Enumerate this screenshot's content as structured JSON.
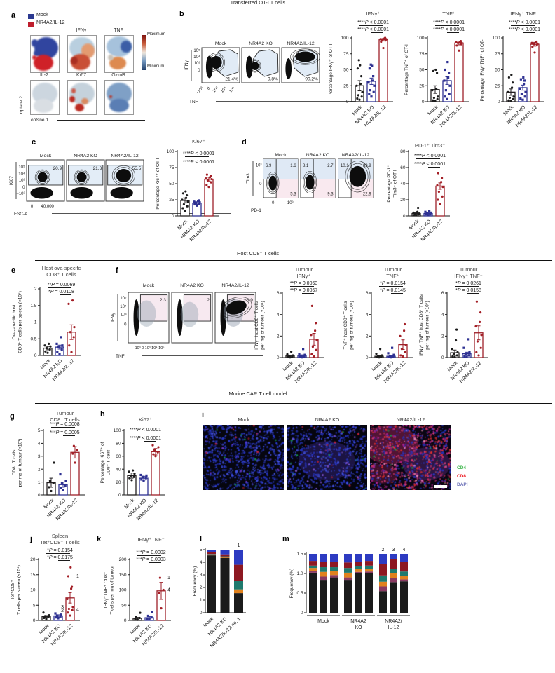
{
  "section_headers": [
    "Transferred OT-I T cells",
    "Host CD8⁺ T cells",
    "Murine CAR T cell model"
  ],
  "panel_letters": [
    "a",
    "b",
    "c",
    "d",
    "e",
    "f",
    "g",
    "h",
    "i",
    "j",
    "k",
    "l",
    "m"
  ],
  "colors": {
    "mock": "#231f20",
    "ko": "#2e3192",
    "il12": "#9e1f28",
    "dot_mock": "#1b1b1b",
    "dot_ko": "#2e3192",
    "dot_il12": "#a31f26",
    "annot": "#1f7a6e",
    "stack": [
      "#1b1b1b",
      "#8a3a62",
      "#e0821e",
      "#1f7a6e",
      "#8d1822",
      "#2d3bc1"
    ]
  },
  "panel_a": {
    "legend": [
      {
        "label": "Mock",
        "color": "#2b3990"
      },
      {
        "label": "NR4A2/IL-12",
        "color": "#be1e2d"
      }
    ],
    "row1_labels": [
      "IFNγ",
      "TNF"
    ],
    "row2_labels": [
      "IL-2",
      "Ki67",
      "GzmB"
    ],
    "colorbar": {
      "top": "Maximum",
      "bottom": "Minimum"
    },
    "x_axis": "optsne 1",
    "y_axis": "optsne 2"
  },
  "flow_plots": {
    "b": {
      "ylabel": "IFNγ",
      "xlabel": "TNF",
      "yticks": [
        "10⁵",
        "10⁴",
        "10³",
        "0"
      ],
      "xticks": [
        "−10³",
        "0",
        "10³",
        "10⁴",
        "10⁵"
      ],
      "plots": [
        {
          "name": "Mock",
          "value": "21.4%"
        },
        {
          "name": "NR4A2 KO",
          "value": "9.8%"
        },
        {
          "name": "NR4A2/IL-12",
          "value": "90.2%"
        }
      ]
    },
    "c": {
      "ylabel": "Ki67",
      "xlabel": "FSC-A",
      "yticks": [
        "10⁵",
        "10⁴",
        "10³",
        "0",
        "−10³"
      ],
      "xticks": [
        "0",
        "40,000"
      ],
      "plots": [
        {
          "name": "Mock",
          "value": "20.9"
        },
        {
          "name": "NR4A2 KO",
          "value": "21.3"
        },
        {
          "name": "NR4A2/IL-12",
          "value": "55.5"
        }
      ]
    },
    "d": {
      "ylabel": "Tim3",
      "xlabel": "PD-1",
      "yticks": [
        "10³",
        "0"
      ],
      "xticks": [
        "0",
        "10³"
      ],
      "plots": [
        {
          "name": "Mock",
          "tl": "6.9",
          "tr": "1.6",
          "br": "5.3"
        },
        {
          "name": "NR4A2 KO",
          "tl": "8.1",
          "tr": "2.7",
          "br": "9.3"
        },
        {
          "name": "NR4A2/IL-12",
          "tl": "10.1",
          "tr": "33.9",
          "br": "22.9"
        }
      ]
    },
    "f": {
      "ylabel": "IFNγ",
      "xlabel": "TNF",
      "yticks": [
        "10⁵",
        "10⁴",
        "10³",
        "0"
      ],
      "xticks": [
        "−10³",
        "0",
        "10³",
        "10⁴",
        "10⁵"
      ],
      "plots": [
        {
          "name": "Mock",
          "value": "2.3"
        },
        {
          "name": "NR4A2 KO",
          "value": "2"
        },
        {
          "name": "NR4A2/IL-12",
          "value": "8.9"
        }
      ]
    }
  },
  "chart_data": [
    {
      "id": "b1",
      "type": "bar",
      "title": "IFNγ⁺",
      "p": [
        "****P < 0.0001",
        "****P < 0.0001"
      ],
      "ylabel": "Percentage IFNγ⁺ of OT-I",
      "ymax": 100,
      "yticks": [
        0,
        25,
        50,
        75,
        100
      ],
      "categories": [
        "Mock",
        "NR4A2 KO",
        "NR4A2/IL-12"
      ],
      "values": [
        25,
        32,
        97
      ],
      "errors": [
        8,
        5,
        2
      ],
      "dots": [
        [
          3,
          5,
          8,
          10,
          15,
          25,
          28,
          40,
          52,
          57,
          65
        ],
        [
          8,
          12,
          15,
          18,
          25,
          30,
          33,
          40,
          52,
          56,
          58
        ],
        [
          84,
          94,
          96,
          97,
          98,
          98,
          99,
          100
        ]
      ]
    },
    {
      "id": "b2",
      "type": "bar",
      "title": "TNF⁺",
      "p": [
        "****P < 0.0001",
        "****P < 0.0001"
      ],
      "ylabel": "Percentage TNF⁺ of OT-I",
      "ymax": 100,
      "yticks": [
        0,
        25,
        50,
        75,
        100
      ],
      "categories": [
        "Mock",
        "NR4A2 KO",
        "NR4A2/IL-12"
      ],
      "values": [
        19,
        33,
        92
      ],
      "errors": [
        6,
        6,
        3
      ],
      "dots": [
        [
          1,
          2,
          4,
          6,
          8,
          18,
          20,
          45,
          48,
          50
        ],
        [
          4,
          8,
          12,
          18,
          25,
          33,
          38,
          45,
          50,
          62
        ],
        [
          80,
          88,
          90,
          92,
          92,
          93,
          94,
          95
        ]
      ]
    },
    {
      "id": "b3",
      "type": "bar",
      "title": "IFNγ⁺ TNF⁺",
      "p": [
        "****P < 0.0001",
        "****P < 0.0001"
      ],
      "ylabel": "Percentage IFNγ⁺TNF⁺ of OT-I",
      "ymax": 100,
      "yticks": [
        0,
        25,
        50,
        75,
        100
      ],
      "categories": [
        "Mock",
        "NR4A2 KO",
        "NR4A2/IL-12"
      ],
      "values": [
        15,
        22,
        90
      ],
      "errors": [
        5,
        4,
        3
      ],
      "dots": [
        [
          1,
          2,
          4,
          6,
          8,
          15,
          22,
          30,
          38,
          42
        ],
        [
          3,
          5,
          8,
          12,
          15,
          20,
          28,
          33,
          35,
          38
        ],
        [
          77,
          86,
          89,
          90,
          91,
          92,
          93,
          94
        ]
      ]
    },
    {
      "id": "c1",
      "type": "bar",
      "title": "Ki67⁺",
      "p": [
        "****P < 0.0001",
        "****P < 0.0001"
      ],
      "ylabel": "Percentage Ki67⁺ of OT-I",
      "ymax": 100,
      "yticks": [
        0,
        25,
        50,
        75,
        100
      ],
      "categories": [
        "Mock",
        "NR4A2 KO",
        "NR4A2/IL-12"
      ],
      "values": [
        24,
        20,
        57
      ],
      "errors": [
        4,
        2,
        3
      ],
      "dots": [
        [
          8,
          12,
          15,
          18,
          22,
          25,
          28,
          32,
          35,
          38
        ],
        [
          16,
          18,
          19,
          20,
          21,
          22,
          23,
          24
        ],
        [
          45,
          48,
          52,
          55,
          57,
          58,
          60,
          62,
          64
        ]
      ]
    },
    {
      "id": "d1",
      "type": "bar",
      "title": "PD-1⁺ Tim3⁺",
      "p": [
        "****P < 0.0001",
        "****P < 0.0001"
      ],
      "ylabel": [
        "Percentage PD-1⁺",
        "Tim3⁺ of OT-I"
      ],
      "ymax": 80,
      "yticks": [
        0,
        20,
        40,
        60,
        80
      ],
      "categories": [
        "Mock",
        "NR4A2 KO",
        "NR4A2/IL-12"
      ],
      "values": [
        3,
        3,
        37
      ],
      "errors": [
        1,
        1,
        4
      ],
      "dots": [
        [
          1,
          1,
          2,
          2,
          3,
          4,
          5,
          10
        ],
        [
          1,
          2,
          2,
          3,
          4,
          5,
          6
        ],
        [
          15,
          20,
          24,
          30,
          36,
          38,
          42,
          47,
          53
        ]
      ]
    },
    {
      "id": "e1",
      "type": "bar",
      "title": [
        "Host ova-specifc",
        "CD8⁺ T cells"
      ],
      "p": [
        "**P = 0.0069",
        "*P = 0.0108"
      ],
      "ylabel": [
        "Ova-specific host",
        "CD8⁺ T cells per spleen (×10⁵)"
      ],
      "ymax": 2,
      "yticks": [
        0,
        0.5,
        1,
        1.5,
        2
      ],
      "categories": [
        "Mock",
        "NR4A2 KO",
        "NR4A2/IL-12"
      ],
      "values": [
        0.22,
        0.25,
        0.7
      ],
      "errors": [
        0.05,
        0.06,
        0.22
      ],
      "dots": [
        [
          0.08,
          0.12,
          0.18,
          0.22,
          0.27,
          0.3,
          0.35
        ],
        [
          0.05,
          0.1,
          0.18,
          0.25,
          0.3,
          0.35,
          0.55
        ],
        [
          0.1,
          0.3,
          0.55,
          0.7,
          0.85,
          1.55,
          1.65
        ]
      ]
    },
    {
      "id": "f1",
      "type": "bar",
      "title": [
        "Tumour",
        "IFNγ⁺"
      ],
      "p": [
        "**P = 0.0063",
        "**P = 0.0057"
      ],
      "ylabel": [
        "IFNγ⁺ host CD8⁺ T cells",
        "per mg of tumour (×10⁴)"
      ],
      "ymax": 6,
      "yticks": [
        0,
        2,
        4,
        6
      ],
      "categories": [
        "Mock",
        "NR4A2 KO",
        "NR4A2/IL-12"
      ],
      "values": [
        0.15,
        0.15,
        1.7
      ],
      "errors": [
        0.08,
        0.1,
        0.55
      ],
      "dots": [
        [
          0.02,
          0.05,
          0.1,
          0.15,
          0.2,
          0.3,
          0.55
        ],
        [
          0.02,
          0.05,
          0.1,
          0.15,
          0.25,
          0.35,
          0.8
        ],
        [
          0.1,
          0.3,
          0.7,
          1.0,
          1.6,
          2.1,
          2.5,
          3.2,
          4.8
        ]
      ]
    },
    {
      "id": "f2",
      "type": "bar",
      "title": [
        "Tumour",
        "TNF⁺"
      ],
      "p": [
        "*P = 0.0154",
        "*P = 0.0145"
      ],
      "ylabel": [
        "TNF⁺ host CD8⁺ T cells",
        "per mg of tumour (×10⁴)"
      ],
      "ymax": 6,
      "yticks": [
        0,
        2,
        4,
        6
      ],
      "categories": [
        "Mock",
        "NR4A2 KO",
        "NR4A2/IL-12"
      ],
      "values": [
        0.12,
        0.12,
        1.2
      ],
      "errors": [
        0.07,
        0.08,
        0.45
      ],
      "dots": [
        [
          0.02,
          0.05,
          0.1,
          0.15,
          0.2,
          0.35,
          0.8
        ],
        [
          0.02,
          0.05,
          0.1,
          0.15,
          0.25,
          0.4,
          0.9
        ],
        [
          0.1,
          0.2,
          0.5,
          0.8,
          1.2,
          2.0,
          2.5,
          3.1
        ]
      ]
    },
    {
      "id": "f3",
      "type": "bar",
      "title": [
        "Tumour",
        "IFNγ⁺ TNF⁺"
      ],
      "p": [
        "*P = 0.0261",
        "*P = 0.0158"
      ],
      "ylabel": [
        "IFNγ⁺ TNF⁺ host CD8⁺ T cells",
        "per mg of tumour (×10⁴)"
      ],
      "ymax": 6,
      "yticks": [
        0,
        2,
        4,
        6
      ],
      "categories": [
        "Mock",
        "NR4A2 KO",
        "NR4A2/IL-12"
      ],
      "values": [
        0.45,
        0.35,
        2.3
      ],
      "errors": [
        0.25,
        0.15,
        0.65
      ],
      "dots": [
        [
          0.05,
          0.1,
          0.2,
          0.3,
          0.5,
          0.8,
          1.6,
          2.6
        ],
        [
          0.05,
          0.1,
          0.2,
          0.35,
          0.5,
          0.9,
          1.7
        ],
        [
          0.2,
          0.5,
          0.9,
          1.5,
          2.1,
          2.9,
          3.3,
          4.2,
          5.2
        ]
      ]
    },
    {
      "id": "g1",
      "type": "bar",
      "title": [
        "Tumour",
        "CD8⁺ T cells"
      ],
      "p": [
        "***P = 0.0008",
        "***P = 0.0005"
      ],
      "ylabel": [
        "CD8⁺ T cells",
        "per mg of tumour (×10³)"
      ],
      "ymax": 5,
      "yticks": [
        0,
        1,
        2,
        3,
        4,
        5
      ],
      "categories": [
        "Mock",
        "NR4A2 KO",
        "NR4A2/IL-12"
      ],
      "values": [
        0.95,
        0.8,
        3.3
      ],
      "errors": [
        0.35,
        0.2,
        0.45
      ],
      "dots": [
        [
          0.3,
          0.6,
          0.9,
          1.1,
          2.5
        ],
        [
          0.4,
          0.55,
          0.7,
          0.9,
          1.1,
          1.6
        ],
        [
          2.5,
          3.2,
          3.5,
          3.8
        ]
      ]
    },
    {
      "id": "h1",
      "type": "bar",
      "title": "Ki67⁺",
      "p": [
        "****P < 0.0001",
        "****P < 0.0001"
      ],
      "ylabel": [
        "Percentage Ki67⁺ of",
        "CD8⁺ T cells"
      ],
      "ymax": 100,
      "yticks": [
        0,
        20,
        40,
        60,
        80,
        100
      ],
      "categories": [
        "Mock",
        "NR4A2 KO",
        "NR4A2/IL-12"
      ],
      "values": [
        30,
        26,
        67
      ],
      "errors": [
        4,
        3,
        5
      ],
      "dots": [
        [
          23,
          26,
          28,
          30,
          33,
          36,
          38
        ],
        [
          22,
          24,
          26,
          28,
          30,
          31
        ],
        [
          60,
          63,
          66,
          70,
          74,
          77
        ]
      ]
    },
    {
      "id": "j1",
      "type": "bar",
      "title": [
        "Spleen",
        "Tet⁺CD8⁺ T cells"
      ],
      "p": [
        "*P = 0.0154",
        "*P = 0.0175"
      ],
      "ylabel": [
        "Tet⁺CD8⁺",
        "T cells per spleen (×10⁴)"
      ],
      "ymax": 20,
      "yticks": [
        0,
        5,
        10,
        15,
        20
      ],
      "categories": [
        "Mock",
        "NR4A2 KO",
        "NR4A2/IL-12"
      ],
      "values": [
        1.3,
        1.5,
        7.4
      ],
      "errors": [
        0.3,
        0.35,
        1.7
      ],
      "dots": [
        [
          0.5,
          0.8,
          1.1,
          1.4,
          1.7,
          2.6
        ],
        [
          0.7,
          1.0,
          1.3,
          1.6,
          1.9,
          2.3
        ],
        [
          1.6,
          2.6,
          3.4,
          3.8,
          4.4,
          7.0,
          10.4,
          11.0,
          14.5,
          17.4
        ]
      ],
      "annotations": [
        {
          "text": "1",
          "value": 14.5,
          "side": "right"
        },
        {
          "text": "3",
          "value": 4.4,
          "side": "left"
        },
        {
          "text": "2",
          "value": 3.2,
          "side": "left"
        },
        {
          "text": "4",
          "value": 3.6,
          "side": "right"
        }
      ]
    },
    {
      "id": "k1",
      "type": "bar",
      "title": "IFNγ⁺TNF⁺",
      "p": [
        "***P = 0.0002",
        "***P = 0.0003"
      ],
      "ylabel": [
        "IFNγ⁺TNF⁺ CD8⁺",
        "T cells per mg of tumour"
      ],
      "ymax": 200,
      "yticks": [
        0,
        50,
        100,
        150,
        200
      ],
      "categories": [
        "Mock",
        "NR4A2 KO",
        "NR4A2/IL-12"
      ],
      "values": [
        7,
        9,
        97
      ],
      "errors": [
        3,
        4,
        28
      ],
      "dots": [
        [
          2,
          5,
          8,
          12,
          25
        ],
        [
          3,
          6,
          10,
          15,
          28
        ],
        [
          40,
          90,
          100,
          140
        ]
      ],
      "annotations": [
        {
          "text": "1",
          "value": 140,
          "side": "right"
        },
        {
          "text": "4",
          "value": 100,
          "side": "right"
        }
      ]
    },
    {
      "id": "l1",
      "type": "stacked_bar",
      "ylabel": "Frequency (%)",
      "ymax": 5,
      "yticks": [
        0,
        1,
        2,
        3,
        4,
        5
      ],
      "categories": [
        "Mock",
        "NR4A2 KO",
        "NR4A2/IL-12 no. 1"
      ],
      "top_labels": [
        "",
        "",
        "1"
      ],
      "bars": [
        [
          4.55,
          0,
          0.07,
          0.03,
          0.15,
          0.2
        ],
        [
          4.35,
          0,
          0.08,
          0.04,
          0.16,
          0.37
        ],
        [
          1.55,
          0,
          0.3,
          0.65,
          1.3,
          1.2
        ]
      ]
    },
    {
      "id": "m1",
      "type": "stacked_bar",
      "ylabel": "Frequency (%)",
      "ymax": 1.5,
      "yticks": [
        0,
        0.5,
        1.0,
        1.5
      ],
      "tick_labels": [
        "0",
        "0.5",
        "1.0",
        "1.5"
      ],
      "groups": [
        {
          "label": [
            "Mock"
          ],
          "top_labels": [
            "",
            "",
            ""
          ],
          "bars": [
            [
              1.02,
              0.04,
              0.08,
              0.06,
              0.12,
              0.18
            ],
            [
              0.82,
              0.1,
              0.12,
              0.12,
              0.14,
              0.2
            ],
            [
              0.9,
              0.06,
              0.1,
              0.1,
              0.13,
              0.21
            ]
          ]
        },
        {
          "label": [
            "NR4A2",
            "KO"
          ],
          "top_labels": [
            "",
            "",
            ""
          ],
          "bars": [
            [
              0.82,
              0.08,
              0.12,
              0.12,
              0.14,
              0.22
            ],
            [
              1.0,
              0.04,
              0.07,
              0.08,
              0.11,
              0.2
            ],
            [
              1.0,
              0.05,
              0.07,
              0.08,
              0.12,
              0.18
            ]
          ]
        },
        {
          "label": [
            "NR4A2/",
            "IL-12"
          ],
          "top_labels": [
            "2",
            "3",
            "4"
          ],
          "bars": [
            [
              0.55,
              0.12,
              0.12,
              0.16,
              0.3,
              0.25
            ],
            [
              0.78,
              0.1,
              0.12,
              0.12,
              0.25,
              0.13
            ],
            [
              0.8,
              0.05,
              0.08,
              0.12,
              0.25,
              0.2
            ]
          ]
        }
      ]
    }
  ],
  "panel_i": {
    "labels": [
      "Mock",
      "NR4A2 KO",
      "NR4A2/IL-12"
    ],
    "legend": [
      {
        "label": "CD4",
        "color": "#3cb54a"
      },
      {
        "label": "CD8",
        "color": "#ed1c24"
      },
      {
        "label": "DAPI",
        "color": "#6f74b9"
      }
    ]
  }
}
